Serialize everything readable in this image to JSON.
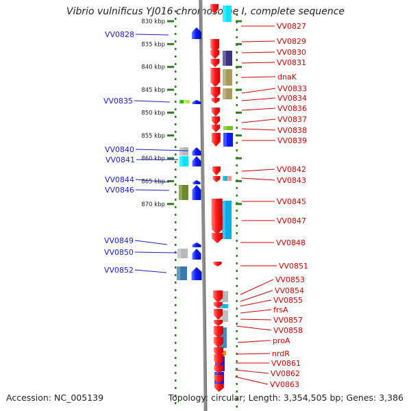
{
  "title": "Vibrio vulnificus YJ016 chromosome I, complete sequence",
  "footer": {
    "accession": "Accession: NC_005139",
    "topology": "Topology: circular; Length: 3,354,505 bp; Genes: 3,386"
  },
  "position_labels": [
    {
      "text": "830 kbp",
      "kbp": 830
    },
    {
      "text": "835 kbp",
      "kbp": 835
    },
    {
      "text": "840 kbp",
      "kbp": 840
    },
    {
      "text": "845 kbp",
      "kbp": 845
    },
    {
      "text": "850 kbp",
      "kbp": 850
    },
    {
      "text": "855 kbp",
      "kbp": 855
    },
    {
      "text": "860 kbp",
      "kbp": 860
    },
    {
      "text": "865 kbp",
      "kbp": 865
    },
    {
      "text": "870 kbp",
      "kbp": 870
    }
  ],
  "strand_minus_genes": [
    "VV0827",
    "VV0829",
    "VV0830",
    "VV0831",
    "dnaK",
    "VV0833",
    "VV0834",
    "VV0836",
    "VV0837",
    "VV0838",
    "VV0839",
    "VV0842",
    "VV0843",
    "VV0845",
    "VV0847",
    "VV0848",
    "VV0851",
    "VV0853",
    "VV0854",
    "VV0855",
    "frsA",
    "VV0857",
    "VV0858",
    "proA",
    "nrdR",
    "VV0861",
    "VV0862",
    "VV0863"
  ],
  "strand_plus_genes": [
    "VV0828",
    "VV0835",
    "VV0840",
    "VV0841",
    "VV0844",
    "VV0846",
    "VV0849",
    "VV0850",
    "VV0852"
  ],
  "colors": {
    "minus_arrow": "#ff1a1a",
    "plus_arrow": "#0a1aff",
    "label_minus": "#cc0000",
    "label_plus": "#1a1acc",
    "backbone": "#8a8a8a",
    "tick": "#2e7d20"
  }
}
